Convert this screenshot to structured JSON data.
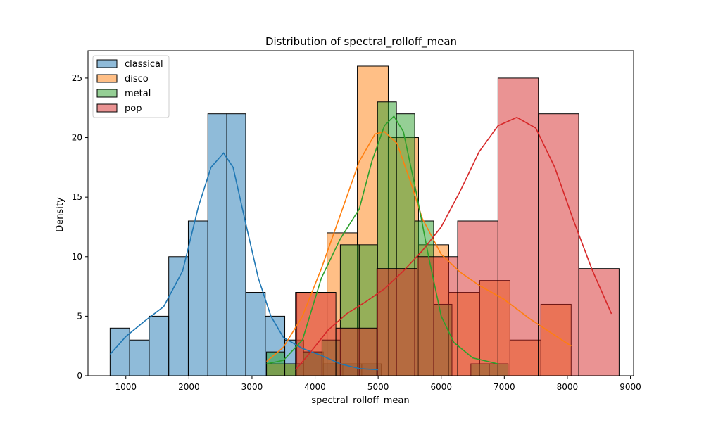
{
  "chart_data": {
    "type": "histogram",
    "title": "Distribution of spectral_rolloff_mean",
    "xlabel": "spectral_rolloff_mean",
    "ylabel": "Density",
    "xlim": [
      400,
      9050
    ],
    "ylim": [
      0,
      27.3
    ],
    "xticks": [
      1000,
      2000,
      3000,
      4000,
      5000,
      6000,
      7000,
      8000,
      9000
    ],
    "yticks": [
      0,
      5,
      10,
      15,
      20,
      25
    ],
    "legend_position": "upper-left",
    "series": [
      {
        "name": "classical",
        "color": "#1f77b4",
        "bins": [
          {
            "x0": 750,
            "x1": 1060,
            "count": 4
          },
          {
            "x0": 1060,
            "x1": 1370,
            "count": 3
          },
          {
            "x0": 1370,
            "x1": 1680,
            "count": 5
          },
          {
            "x0": 1680,
            "x1": 1990,
            "count": 10
          },
          {
            "x0": 1990,
            "x1": 2300,
            "count": 13
          },
          {
            "x0": 2300,
            "x1": 2600,
            "count": 22
          },
          {
            "x0": 2600,
            "x1": 2900,
            "count": 22
          },
          {
            "x0": 2900,
            "x1": 3210,
            "count": 7
          },
          {
            "x0": 3210,
            "x1": 3520,
            "count": 5
          },
          {
            "x0": 3520,
            "x1": 3820,
            "count": 3
          },
          {
            "x0": 3820,
            "x1": 4130,
            "count": 2
          },
          {
            "x0": 4130,
            "x1": 4440,
            "count": 1
          },
          {
            "x0": 4440,
            "x1": 4740,
            "count": 1
          },
          {
            "x0": 4740,
            "x1": 5050,
            "count": 1
          }
        ],
        "kde": [
          [
            750,
            1.8
          ],
          [
            1000,
            3.3
          ],
          [
            1300,
            4.6
          ],
          [
            1600,
            5.8
          ],
          [
            1900,
            8.8
          ],
          [
            2150,
            14.2
          ],
          [
            2350,
            17.5
          ],
          [
            2550,
            18.7
          ],
          [
            2700,
            17.5
          ],
          [
            2900,
            12.8
          ],
          [
            3100,
            8.2
          ],
          [
            3300,
            5.0
          ],
          [
            3500,
            3.2
          ],
          [
            3800,
            2.3
          ],
          [
            4100,
            1.7
          ],
          [
            4400,
            1.0
          ],
          [
            4700,
            0.6
          ],
          [
            5000,
            0.5
          ]
        ]
      },
      {
        "name": "disco",
        "color": "#ff7f0e",
        "bins": [
          {
            "x0": 3230,
            "x1": 3710,
            "count": 1
          },
          {
            "x0": 3710,
            "x1": 4190,
            "count": 7
          },
          {
            "x0": 4190,
            "x1": 4670,
            "count": 12
          },
          {
            "x0": 4670,
            "x1": 5160,
            "count": 26
          },
          {
            "x0": 5160,
            "x1": 5640,
            "count": 20
          },
          {
            "x0": 5640,
            "x1": 6120,
            "count": 11
          },
          {
            "x0": 6120,
            "x1": 6610,
            "count": 7
          },
          {
            "x0": 6610,
            "x1": 7090,
            "count": 8
          },
          {
            "x0": 7090,
            "x1": 7580,
            "count": 3
          },
          {
            "x0": 7580,
            "x1": 8060,
            "count": 6
          }
        ],
        "kde": [
          [
            3230,
            1.2
          ],
          [
            3500,
            2.4
          ],
          [
            3800,
            5.0
          ],
          [
            4100,
            9.0
          ],
          [
            4400,
            13.5
          ],
          [
            4700,
            18.0
          ],
          [
            4950,
            20.3
          ],
          [
            5100,
            20.5
          ],
          [
            5300,
            19.5
          ],
          [
            5500,
            16.5
          ],
          [
            5700,
            13.2
          ],
          [
            6000,
            10.2
          ],
          [
            6300,
            8.7
          ],
          [
            6600,
            7.6
          ],
          [
            7000,
            6.4
          ],
          [
            7400,
            4.8
          ],
          [
            7800,
            3.4
          ],
          [
            8060,
            2.5
          ]
        ]
      },
      {
        "name": "metal",
        "color": "#2ca02c",
        "bins": [
          {
            "x0": 3230,
            "x1": 3520,
            "count": 2
          },
          {
            "x0": 3520,
            "x1": 3810,
            "count": 1
          },
          {
            "x0": 3810,
            "x1": 4110,
            "count": 2
          },
          {
            "x0": 4110,
            "x1": 4400,
            "count": 3
          },
          {
            "x0": 4400,
            "x1": 4700,
            "count": 11
          },
          {
            "x0": 4700,
            "x1": 4990,
            "count": 11
          },
          {
            "x0": 4990,
            "x1": 5290,
            "count": 23
          },
          {
            "x0": 5290,
            "x1": 5580,
            "count": 22
          },
          {
            "x0": 5580,
            "x1": 5880,
            "count": 13
          },
          {
            "x0": 5880,
            "x1": 6170,
            "count": 6
          },
          {
            "x0": 6170,
            "x1": 6470,
            "count": 0
          },
          {
            "x0": 6470,
            "x1": 6760,
            "count": 1
          },
          {
            "x0": 6760,
            "x1": 7060,
            "count": 1
          }
        ],
        "kde": [
          [
            3230,
            1.0
          ],
          [
            3500,
            1.3
          ],
          [
            3800,
            3.0
          ],
          [
            4100,
            8.2
          ],
          [
            4400,
            11.5
          ],
          [
            4700,
            14.0
          ],
          [
            4900,
            18.0
          ],
          [
            5100,
            21.0
          ],
          [
            5250,
            21.8
          ],
          [
            5400,
            20.5
          ],
          [
            5600,
            15.5
          ],
          [
            5800,
            10.0
          ],
          [
            6000,
            5.0
          ],
          [
            6200,
            2.8
          ],
          [
            6500,
            1.5
          ],
          [
            6900,
            1.0
          ]
        ]
      },
      {
        "name": "pop",
        "color": "#d62728",
        "bins": [
          {
            "x0": 3690,
            "x1": 4330,
            "count": 7
          },
          {
            "x0": 4330,
            "x1": 4980,
            "count": 4
          },
          {
            "x0": 4980,
            "x1": 5620,
            "count": 9
          },
          {
            "x0": 5620,
            "x1": 6260,
            "count": 10
          },
          {
            "x0": 6260,
            "x1": 6900,
            "count": 13
          },
          {
            "x0": 6900,
            "x1": 7540,
            "count": 25
          },
          {
            "x0": 7540,
            "x1": 8180,
            "count": 22
          },
          {
            "x0": 8180,
            "x1": 8820,
            "count": 9
          }
        ],
        "kde": [
          [
            3690,
            0.5
          ],
          [
            3900,
            1.8
          ],
          [
            4200,
            3.8
          ],
          [
            4500,
            5.2
          ],
          [
            4800,
            6.2
          ],
          [
            5100,
            7.3
          ],
          [
            5400,
            8.8
          ],
          [
            5700,
            10.5
          ],
          [
            6000,
            12.5
          ],
          [
            6300,
            15.5
          ],
          [
            6600,
            18.8
          ],
          [
            6900,
            21.0
          ],
          [
            7200,
            21.7
          ],
          [
            7500,
            20.8
          ],
          [
            7800,
            17.5
          ],
          [
            8100,
            13.0
          ],
          [
            8400,
            8.8
          ],
          [
            8700,
            5.2
          ]
        ]
      }
    ]
  }
}
